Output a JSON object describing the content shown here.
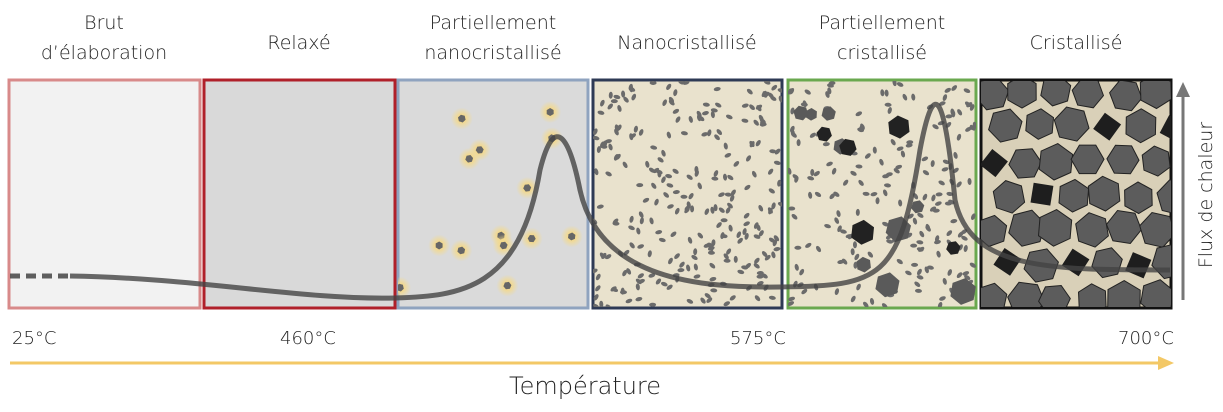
{
  "stages": [
    {
      "lines": [
        "Brut",
        "d’élaboration"
      ]
    },
    {
      "lines": [
        "Relaxé"
      ]
    },
    {
      "lines": [
        "Partiellement",
        "nanocristallisé"
      ]
    },
    {
      "lines": [
        "Nanocristallisé"
      ]
    },
    {
      "lines": [
        "Partiellement",
        "cristallisé"
      ]
    },
    {
      "lines": [
        "Cristallisé"
      ]
    }
  ],
  "temperatures": [
    "25°C",
    "460°C",
    "575°C",
    "700°C"
  ],
  "x_axis_label": "Température",
  "y_axis_label": "Flux de chaleur"
}
